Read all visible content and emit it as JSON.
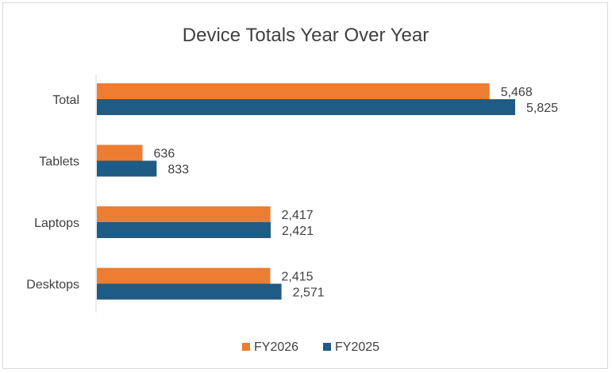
{
  "chart_data": {
    "type": "bar",
    "orientation": "horizontal",
    "title": "Device Totals Year Over Year",
    "categories": [
      "Total",
      "Tablets",
      "Laptops",
      "Desktops"
    ],
    "series": [
      {
        "name": "FY2026",
        "color": "#ed7d31",
        "values": [
          5468,
          636,
          2417,
          2415
        ],
        "labels": [
          "5,468",
          "636",
          "2,417",
          "2,415"
        ]
      },
      {
        "name": "FY2025",
        "color": "#1f5c85",
        "values": [
          5825,
          833,
          2421,
          2571
        ],
        "labels": [
          "5,825",
          "833",
          "2,421",
          "2,571"
        ]
      }
    ],
    "xlim": [
      0,
      6000
    ],
    "grid": false,
    "legend_position": "bottom"
  }
}
